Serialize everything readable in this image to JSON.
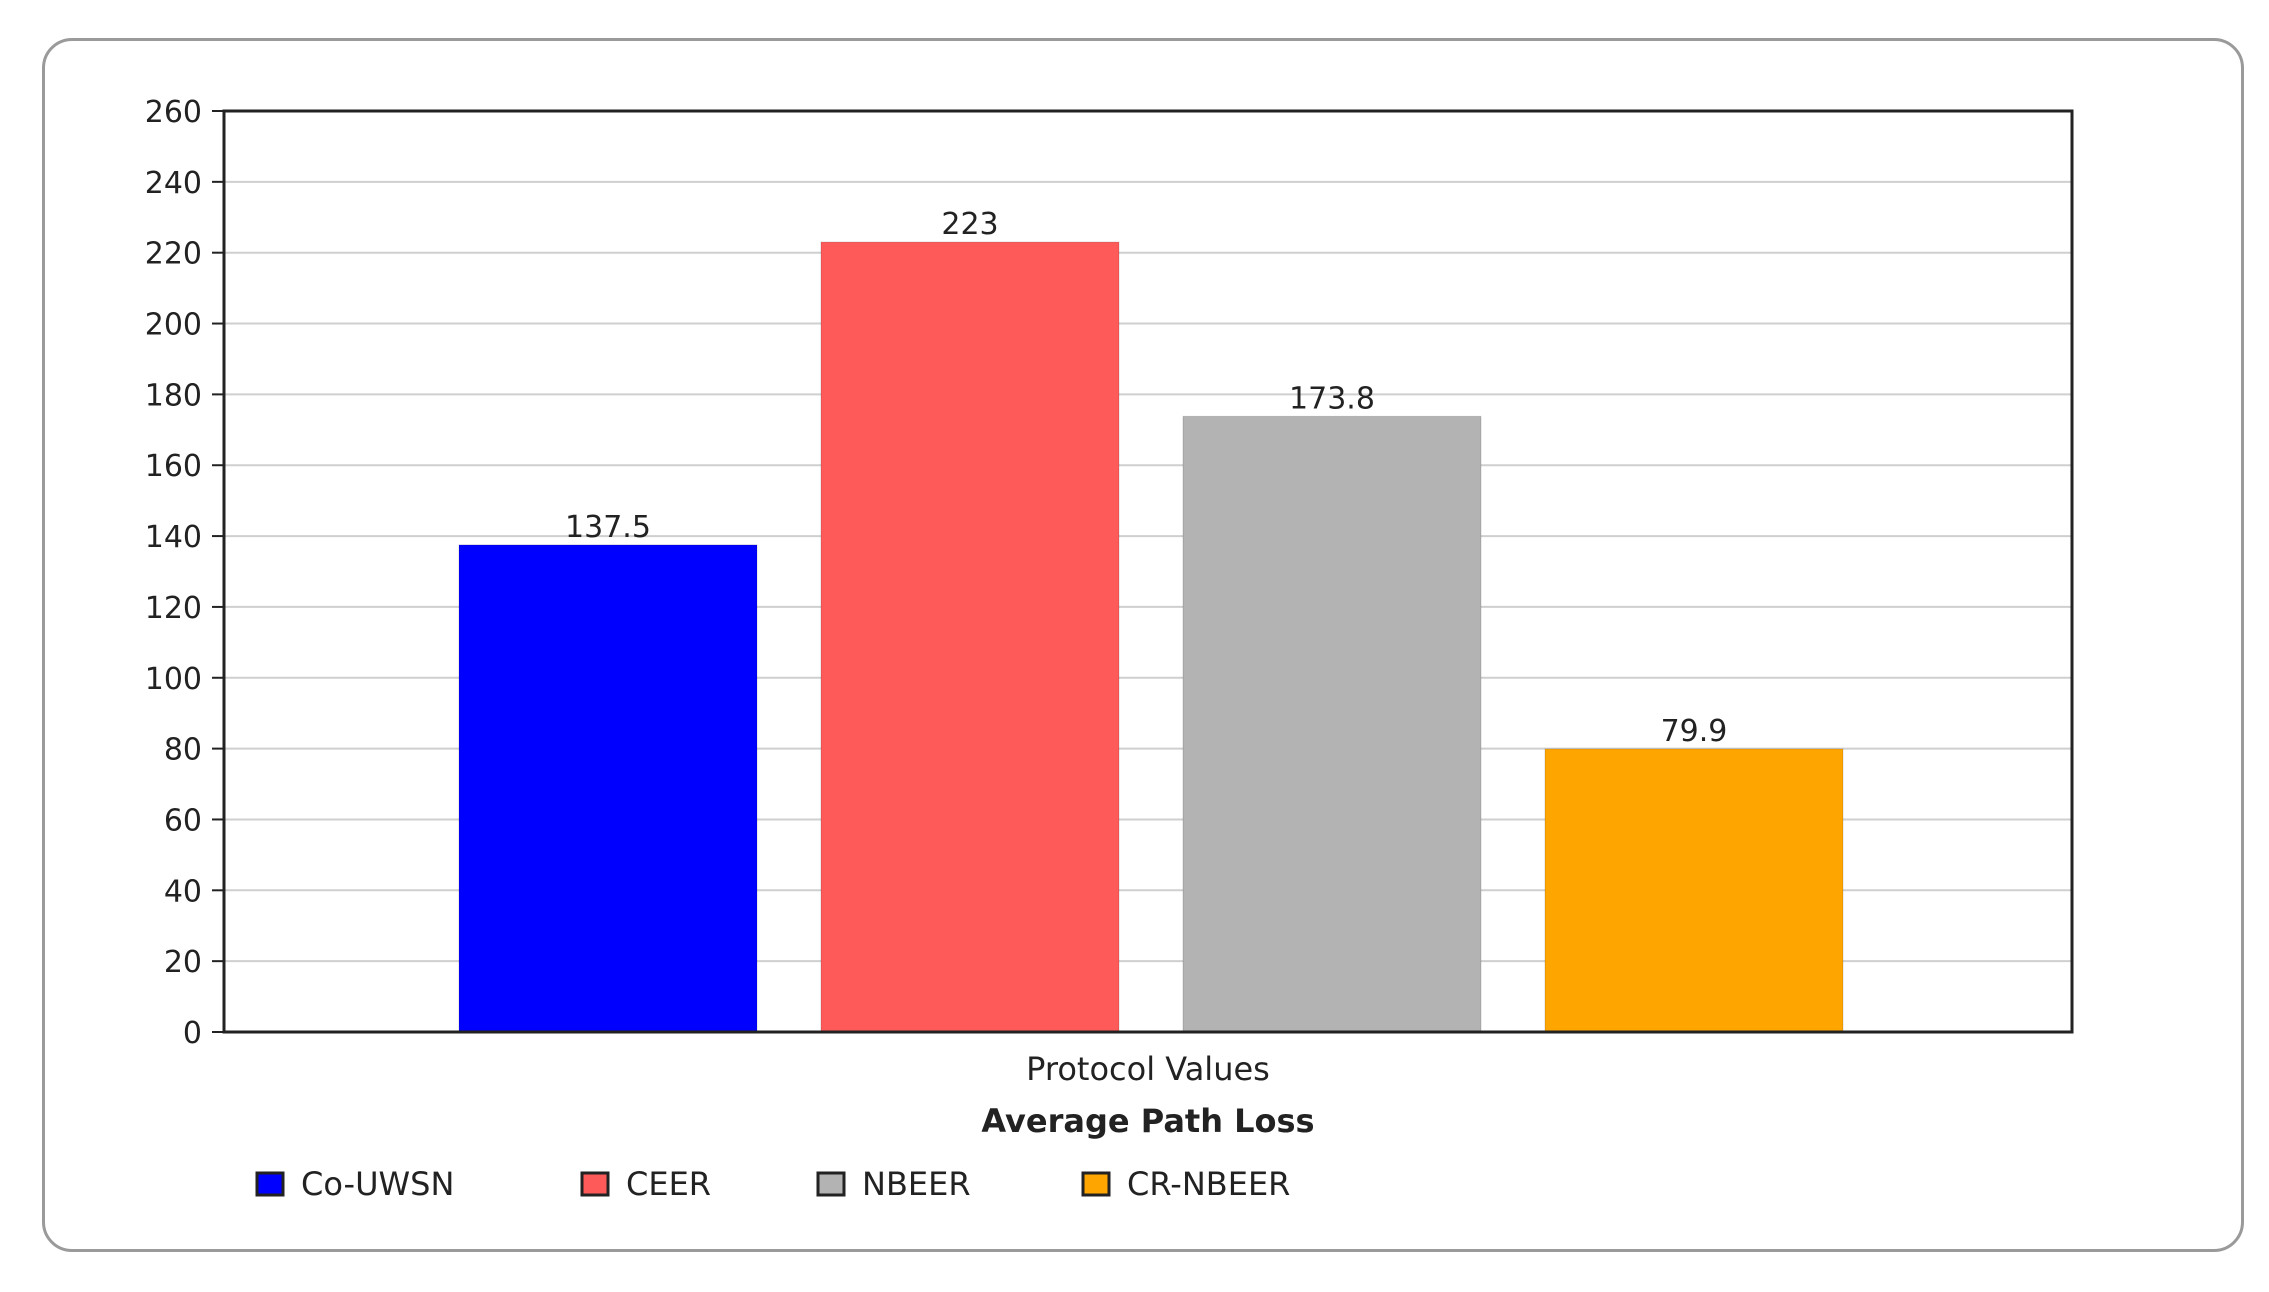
{
  "chart_data": {
    "type": "bar",
    "title": "Average Path Loss",
    "xlabel": "Protocol Values",
    "ylabel": "",
    "ylim": [
      0,
      260
    ],
    "ytick_step": 20,
    "grid": true,
    "legend_placement": "bottom",
    "categories": [
      "Co-UWSN",
      "CEER",
      "NBEER",
      "CR-NBEER"
    ],
    "values": [
      137.5,
      223,
      173.8,
      79.9
    ],
    "value_labels": [
      "137.5",
      "223",
      "173.8",
      "79.9"
    ],
    "colors": [
      "#0000ff",
      "#ff5a5a",
      "#b3b3b3",
      "#ffa500"
    ],
    "legend": [
      {
        "name": "Co-UWSN",
        "color": "#0000ff"
      },
      {
        "name": "CEER",
        "color": "#ff5a5a"
      },
      {
        "name": "NBEER",
        "color": "#b3b3b3"
      },
      {
        "name": "CR-NBEER",
        "color": "#ffa500"
      }
    ]
  }
}
